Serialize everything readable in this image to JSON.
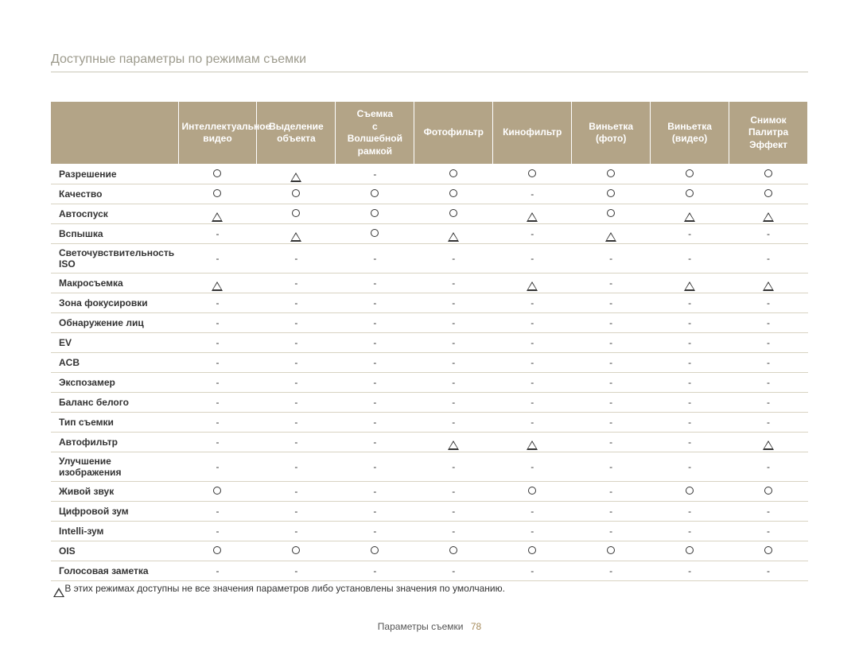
{
  "title": "Доступные параметры по режимам съемки",
  "header_bg": "#b3a487",
  "header_fg": "#ffffff",
  "row_border": "#d8d3c2",
  "columns": [
    "",
    "Интеллектуальное видео",
    "Выделение объекта",
    "Съемка с Волшебной рамкой",
    "Фотофильтр",
    "Кинофильтр",
    "Виньетка (фото)",
    "Виньетка (видео)",
    "Снимок Палитра Эффект"
  ],
  "rows": [
    {
      "label": "Разрешение",
      "cells": [
        "O",
        "T",
        "-",
        "O",
        "O",
        "O",
        "O",
        "O"
      ]
    },
    {
      "label": "Качество",
      "cells": [
        "O",
        "O",
        "O",
        "O",
        "-",
        "O",
        "O",
        "O"
      ]
    },
    {
      "label": "Автоспуск",
      "cells": [
        "T",
        "O",
        "O",
        "O",
        "T",
        "O",
        "T",
        "T"
      ]
    },
    {
      "label": "Вспышка",
      "cells": [
        "-",
        "T",
        "O",
        "T",
        "-",
        "T",
        "-",
        "-"
      ]
    },
    {
      "label": "Светочувствительность ISO",
      "cells": [
        "-",
        "-",
        "-",
        "-",
        "-",
        "-",
        "-",
        "-"
      ]
    },
    {
      "label": "Макросъемка",
      "cells": [
        "T",
        "-",
        "-",
        "-",
        "T",
        "-",
        "T",
        "T"
      ]
    },
    {
      "label": "Зона фокусировки",
      "cells": [
        "-",
        "-",
        "-",
        "-",
        "-",
        "-",
        "-",
        "-"
      ]
    },
    {
      "label": "Обнаружение лиц",
      "cells": [
        "-",
        "-",
        "-",
        "-",
        "-",
        "-",
        "-",
        "-"
      ]
    },
    {
      "label": "EV",
      "cells": [
        "-",
        "-",
        "-",
        "-",
        "-",
        "-",
        "-",
        "-"
      ]
    },
    {
      "label": "ACB",
      "cells": [
        "-",
        "-",
        "-",
        "-",
        "-",
        "-",
        "-",
        "-"
      ]
    },
    {
      "label": "Экспозамер",
      "cells": [
        "-",
        "-",
        "-",
        "-",
        "-",
        "-",
        "-",
        "-"
      ]
    },
    {
      "label": "Баланс белого",
      "cells": [
        "-",
        "-",
        "-",
        "-",
        "-",
        "-",
        "-",
        "-"
      ]
    },
    {
      "label": "Тип съемки",
      "cells": [
        "-",
        "-",
        "-",
        "-",
        "-",
        "-",
        "-",
        "-"
      ]
    },
    {
      "label": "Автофильтр",
      "cells": [
        "-",
        "-",
        "-",
        "T",
        "T",
        "-",
        "-",
        "T"
      ]
    },
    {
      "label": "Улучшение изображения",
      "cells": [
        "-",
        "-",
        "-",
        "-",
        "-",
        "-",
        "-",
        "-"
      ]
    },
    {
      "label": "Живой звук",
      "cells": [
        "O",
        "-",
        "-",
        "-",
        "O",
        "-",
        "O",
        "O"
      ]
    },
    {
      "label": "Цифровой зум",
      "cells": [
        "-",
        "-",
        "-",
        "-",
        "-",
        "-",
        "-",
        "-"
      ]
    },
    {
      "label": "Intelli-зум",
      "cells": [
        "-",
        "-",
        "-",
        "-",
        "-",
        "-",
        "-",
        "-"
      ]
    },
    {
      "label": "OIS",
      "cells": [
        "O",
        "O",
        "O",
        "O",
        "O",
        "O",
        "O",
        "O"
      ]
    },
    {
      "label": "Голосовая заметка",
      "cells": [
        "-",
        "-",
        "-",
        "-",
        "-",
        "-",
        "-",
        "-"
      ]
    }
  ],
  "footnote": "В этих режимах доступны не все значения параметров либо установлены значения по умолчанию.",
  "footer_label": "Параметры съемки",
  "footer_page": "78"
}
